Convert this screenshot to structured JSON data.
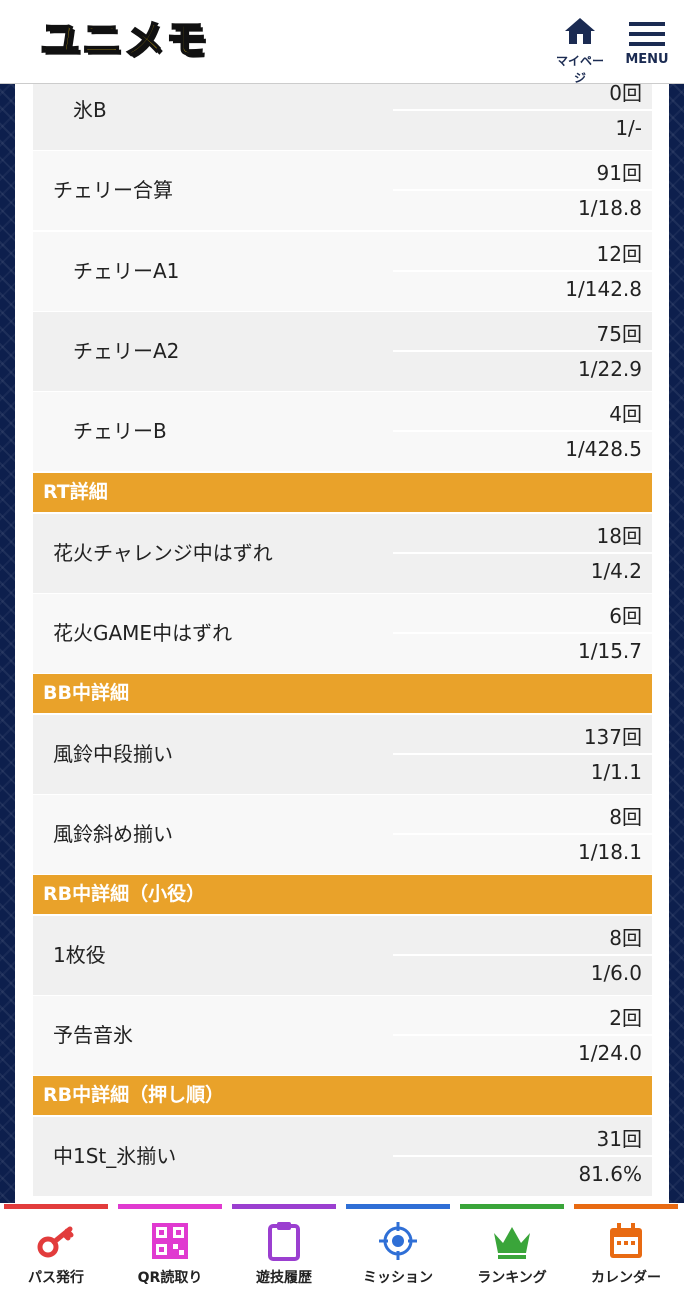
{
  "header": {
    "logo_text": "ユニメモ",
    "mypage_label": "マイページ",
    "menu_label": "MENU"
  },
  "rows_top": [
    {
      "name": "氷B",
      "count": "0回",
      "prob": "1/-"
    },
    {
      "name": "チェリー合算",
      "count": "91回",
      "prob": "1/18.8"
    },
    {
      "name": "チェリーA1",
      "count": "12回",
      "prob": "1/142.8"
    },
    {
      "name": "チェリーA2",
      "count": "75回",
      "prob": "1/22.9"
    },
    {
      "name": "チェリーB",
      "count": "4回",
      "prob": "1/428.5"
    }
  ],
  "sections": {
    "rt": {
      "title": "RT詳細",
      "rows": [
        {
          "name": "花火チャレンジ中はずれ",
          "count": "18回",
          "prob": "1/4.2"
        },
        {
          "name": "花火GAME中はずれ",
          "count": "6回",
          "prob": "1/15.7"
        }
      ]
    },
    "bb": {
      "title": "BB中詳細",
      "rows": [
        {
          "name": "風鈴中段揃い",
          "count": "137回",
          "prob": "1/1.1"
        },
        {
          "name": "風鈴斜め揃い",
          "count": "8回",
          "prob": "1/18.1"
        }
      ]
    },
    "rb_small": {
      "title": "RB中詳細（小役）",
      "rows": [
        {
          "name": "1枚役",
          "count": "8回",
          "prob": "1/6.0"
        },
        {
          "name": "予告音氷",
          "count": "2回",
          "prob": "1/24.0"
        }
      ]
    },
    "rb_push": {
      "title": "RB中詳細（押し順）",
      "rows": [
        {
          "name": "中1St_氷揃い",
          "count": "31回",
          "prob": "81.6%"
        }
      ]
    }
  },
  "footer": {
    "items": [
      {
        "label": "パス発行",
        "icon": "key-icon",
        "color": "#e23c3c"
      },
      {
        "label": "QR読取り",
        "icon": "qr-code-icon",
        "color": "#e03ad0"
      },
      {
        "label": "遊技履歴",
        "icon": "clipboard-icon",
        "color": "#9b3fd0"
      },
      {
        "label": "ミッション",
        "icon": "target-icon",
        "color": "#2f6fd6"
      },
      {
        "label": "ランキング",
        "icon": "crown-icon",
        "color": "#3aa53a"
      },
      {
        "label": "カレンダー",
        "icon": "calendar-icon",
        "color": "#e86a12"
      }
    ]
  },
  "colors": {
    "section_header": "#e9a22a",
    "nav_dark": "#1b2b52"
  }
}
